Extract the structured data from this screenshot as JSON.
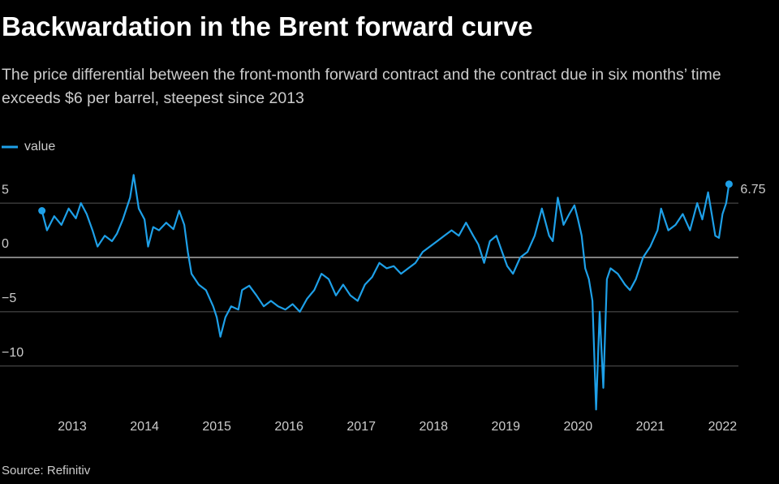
{
  "chart_data": {
    "type": "line",
    "title": "Backwardation in the Brent forward curve",
    "subtitle": "The price differential between the front-month forward contract and the contract due in six months’ time exceeds $6 per barrel, steepest since 2013",
    "source": "Source: Refinitiv",
    "x": [
      2012.58,
      2012.65,
      2012.75,
      2012.85,
      2012.95,
      2013.05,
      2013.12,
      2013.2,
      2013.28,
      2013.35,
      2013.45,
      2013.55,
      2013.62,
      2013.7,
      2013.8,
      2013.85,
      2013.92,
      2014.0,
      2014.05,
      2014.12,
      2014.2,
      2014.3,
      2014.4,
      2014.48,
      2014.55,
      2014.6,
      2014.65,
      2014.75,
      2014.85,
      2014.95,
      2015.0,
      2015.05,
      2015.12,
      2015.2,
      2015.3,
      2015.35,
      2015.45,
      2015.55,
      2015.65,
      2015.75,
      2015.85,
      2015.95,
      2016.05,
      2016.15,
      2016.25,
      2016.35,
      2016.45,
      2016.55,
      2016.65,
      2016.75,
      2016.85,
      2016.95,
      2017.05,
      2017.15,
      2017.25,
      2017.35,
      2017.45,
      2017.55,
      2017.65,
      2017.75,
      2017.85,
      2017.95,
      2018.05,
      2018.15,
      2018.25,
      2018.35,
      2018.45,
      2018.55,
      2018.62,
      2018.7,
      2018.78,
      2018.87,
      2018.95,
      2019.02,
      2019.1,
      2019.2,
      2019.3,
      2019.4,
      2019.5,
      2019.6,
      2019.65,
      2019.72,
      2019.8,
      2019.88,
      2019.95,
      2020.0,
      2020.05,
      2020.1,
      2020.15,
      2020.2,
      2020.25,
      2020.3,
      2020.35,
      2020.4,
      2020.45,
      2020.55,
      2020.65,
      2020.72,
      2020.8,
      2020.9,
      2021.0,
      2021.1,
      2021.15,
      2021.25,
      2021.35,
      2021.45,
      2021.55,
      2021.65,
      2021.72,
      2021.8,
      2021.85,
      2021.9,
      2021.95,
      2022.0,
      2022.05,
      2022.09
    ],
    "series": [
      {
        "name": "value",
        "color": "#1ea0e8",
        "values": [
          4.3,
          2.5,
          3.8,
          3.0,
          4.5,
          3.6,
          5.0,
          4.0,
          2.5,
          1.0,
          2.0,
          1.5,
          2.2,
          3.5,
          5.5,
          7.6,
          4.5,
          3.5,
          1.0,
          2.8,
          2.5,
          3.2,
          2.6,
          4.3,
          3.0,
          0.5,
          -1.5,
          -2.5,
          -3.0,
          -4.5,
          -5.5,
          -7.3,
          -5.5,
          -4.5,
          -4.8,
          -3.0,
          -2.6,
          -3.5,
          -4.5,
          -4.0,
          -4.5,
          -4.8,
          -4.3,
          -5.0,
          -3.8,
          -3.0,
          -1.5,
          -2.0,
          -3.5,
          -2.5,
          -3.5,
          -4.0,
          -2.5,
          -1.8,
          -0.5,
          -1.0,
          -0.8,
          -1.5,
          -1.0,
          -0.5,
          0.5,
          1.0,
          1.5,
          2.0,
          2.5,
          2.0,
          3.2,
          2.0,
          1.2,
          -0.5,
          1.5,
          2.0,
          0.5,
          -0.8,
          -1.5,
          0,
          0.5,
          2.0,
          4.5,
          2.0,
          1.5,
          5.5,
          3.0,
          4.0,
          4.8,
          3.5,
          2.0,
          -1.0,
          -2.0,
          -4.0,
          -14.0,
          -5.0,
          -12.0,
          -2.0,
          -1.0,
          -1.5,
          -2.5,
          -3.0,
          -2.0,
          0.0,
          1.0,
          2.5,
          4.5,
          2.5,
          3.0,
          4.0,
          2.5,
          5.0,
          3.5,
          6.0,
          4.0,
          2.0,
          1.8,
          4.0,
          5.0,
          6.75
        ]
      }
    ],
    "xlim": [
      2012.0,
      2022.22
    ],
    "xticks": [
      2013,
      2014,
      2015,
      2016,
      2017,
      2018,
      2019,
      2020,
      2021,
      2022
    ],
    "ylim": [
      -14.5,
      8
    ],
    "yticks": [
      5,
      0,
      {
        "value": -5,
        "label": "−5"
      },
      {
        "value": -10,
        "label": "−10"
      }
    ],
    "grid": true,
    "legend": "top-left"
  }
}
